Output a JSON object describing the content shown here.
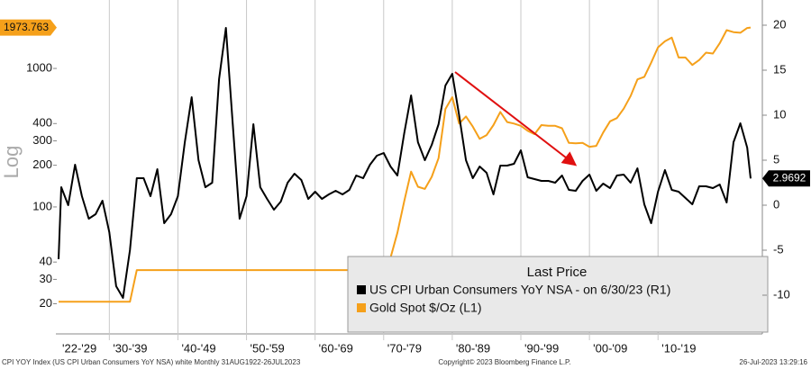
{
  "chart_data": {
    "type": "line",
    "y_label": "Log",
    "legend_title": "Last Price",
    "legend_position": "lower right",
    "grid": true,
    "log_y": true,
    "x": [
      1922.6,
      1923,
      1924,
      1925,
      1926,
      1927,
      1928,
      1929,
      1930,
      1931,
      1932,
      1933,
      1934,
      1935,
      1936,
      1937,
      1938,
      1939,
      1940,
      1941,
      1942,
      1943,
      1944,
      1945,
      1946,
      1947,
      1948,
      1949,
      1950,
      1951,
      1952,
      1953,
      1954,
      1955,
      1956,
      1957,
      1958,
      1959,
      1960,
      1961,
      1962,
      1963,
      1964,
      1965,
      1966,
      1967,
      1968,
      1969,
      1970,
      1971,
      1972,
      1973,
      1974,
      1975,
      1976,
      1977,
      1978,
      1979,
      1980,
      1981,
      1982,
      1983,
      1984,
      1985,
      1986,
      1987,
      1988,
      1989,
      1990,
      1991,
      1992,
      1993,
      1994,
      1995,
      1996,
      1997,
      1998,
      1999,
      2000,
      2001,
      2002,
      2003,
      2004,
      2005,
      2006,
      2007,
      2008,
      2009,
      2010,
      2011,
      2012,
      2013,
      2014,
      2015,
      2016,
      2017,
      2018,
      2019,
      2020,
      2021,
      2022,
      2023,
      2023.5
    ],
    "xlim": [
      1922.6,
      2023.5
    ],
    "xticks": [
      {
        "value": 1922.6,
        "label": "'22-'29"
      },
      {
        "value": 1930,
        "label": "'30-'39"
      },
      {
        "value": 1940,
        "label": "'40-'49"
      },
      {
        "value": 1950,
        "label": "'50-'59"
      },
      {
        "value": 1960,
        "label": "'60-'69"
      },
      {
        "value": 1970,
        "label": "'70-'79"
      },
      {
        "value": 1980,
        "label": "'80-'89"
      },
      {
        "value": 1990,
        "label": "'90-'99"
      },
      {
        "value": 2000,
        "label": "'00-'09"
      },
      {
        "value": 2010,
        "label": "'10-'19"
      }
    ],
    "ylim": [
      12.3,
      3120
    ],
    "yticks": [
      20,
      30,
      40,
      100,
      200,
      300,
      400,
      1000
    ],
    "y2lim": [
      -14.2,
      22.8
    ],
    "y2ticks": [
      -10,
      -5,
      0,
      5,
      10,
      15,
      20
    ],
    "series": [
      {
        "name": "US CPI Urban Consumers YoY NSA -  on 6/30/23  (R1)",
        "color": "#000000",
        "axis": "y2",
        "values": [
          -6,
          2,
          0,
          4.5,
          1,
          -1.5,
          -1,
          0.5,
          -3,
          -9,
          -10.3,
          -5,
          3,
          3,
          1,
          4,
          -2,
          -1,
          1,
          7,
          12,
          5,
          2,
          2.5,
          14,
          19.7,
          9,
          -1.5,
          1,
          9,
          2,
          0.7,
          -0.5,
          0.4,
          2.5,
          3.5,
          2.8,
          0.7,
          1.5,
          0.7,
          1.2,
          1.6,
          1.2,
          1.7,
          3.3,
          3,
          4.5,
          5.5,
          5.8,
          4.3,
          3.3,
          8,
          12.2,
          7,
          5,
          6.7,
          9,
          13.3,
          14.6,
          10,
          5,
          3,
          4.3,
          3.6,
          1.2,
          4.4,
          4.4,
          4.6,
          6.1,
          3.1,
          2.9,
          2.7,
          2.7,
          2.5,
          3.3,
          1.7,
          1.6,
          2.7,
          3.4,
          1.6,
          2.4,
          1.9,
          3.3,
          3.4,
          2.5,
          4.1,
          0.1,
          -2,
          1.5,
          3.9,
          1.7,
          1.5,
          0.8,
          0.1,
          2.1,
          2.1,
          1.9,
          2.3,
          0.3,
          7,
          9.1,
          6.4,
          2.9692
        ]
      },
      {
        "name": "Gold Spot $/Oz  (L1)",
        "color": "#f5a01a",
        "axis": "y",
        "values": [
          20.67,
          20.67,
          20.67,
          20.67,
          20.67,
          20.67,
          20.67,
          20.67,
          20.67,
          20.67,
          20.67,
          20.67,
          35,
          35,
          35,
          35,
          35,
          35,
          35,
          35,
          35,
          35,
          35,
          35,
          35,
          35,
          35,
          35,
          35,
          35,
          35,
          35,
          35,
          35,
          35,
          35,
          35,
          35,
          35,
          35,
          35,
          35,
          35,
          35,
          35,
          35,
          39,
          41,
          36,
          43,
          65,
          110,
          180,
          140,
          135,
          165,
          225,
          510,
          620,
          400,
          450,
          380,
          310,
          330,
          390,
          485,
          410,
          400,
          385,
          355,
          335,
          390,
          385,
          385,
          370,
          290,
          288,
          290,
          272,
          276,
          345,
          415,
          438,
          513,
          632,
          834,
          870,
          1100,
          1420,
          1570,
          1670,
          1200,
          1200,
          1060,
          1150,
          1300,
          1280,
          1520,
          1890,
          1830,
          1810,
          1960,
          1973.763
        ]
      }
    ]
  },
  "footer": {
    "left": "CPI YOY Index (US CPI Urban Consumers YoY NSA) white  Monthly 31AUG1922-26JUL2023",
    "center": "Copyright© 2023 Bloomberg Finance L.P.",
    "right": "26-Jul-2023 13:29:16"
  }
}
